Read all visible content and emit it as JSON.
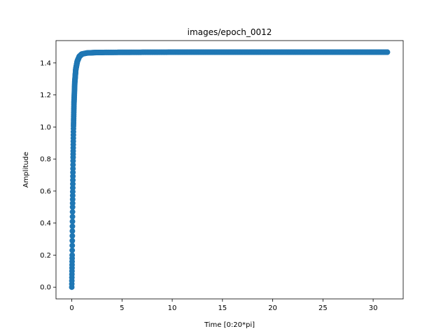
{
  "chart_data": {
    "type": "scatter",
    "title": "images/epoch_0012",
    "xlabel": "Time [0:20*pi]",
    "ylabel": "Amplitude",
    "xlim": [
      -1.57,
      32.99
    ],
    "ylim": [
      -0.0733,
      1.5393
    ],
    "x_ticks": [
      0,
      5,
      10,
      15,
      20,
      25,
      30
    ],
    "x_tick_labels": [
      "0",
      "5",
      "10",
      "15",
      "20",
      "25",
      "30"
    ],
    "y_ticks": [
      0.0,
      0.2,
      0.4,
      0.6,
      0.8,
      1.0,
      1.2,
      1.4
    ],
    "y_tick_labels": [
      "0.0",
      "0.2",
      "0.4",
      "0.6",
      "0.8",
      "1.0",
      "1.2",
      "1.4"
    ],
    "grid": false,
    "legend": "none",
    "series": [
      {
        "color": "#1f77b4",
        "x_range": [
          0,
          31.4159
        ],
        "approx_points": [
          [
            0.0,
            0.0
          ],
          [
            0.02,
            0.1
          ],
          [
            0.04,
            0.2
          ],
          [
            0.06,
            0.35
          ],
          [
            0.08,
            0.5
          ],
          [
            0.1,
            0.62
          ],
          [
            0.13,
            0.8
          ],
          [
            0.17,
            1.0
          ],
          [
            0.22,
            1.15
          ],
          [
            0.3,
            1.28
          ],
          [
            0.4,
            1.36
          ],
          [
            0.55,
            1.41
          ],
          [
            0.75,
            1.44
          ],
          [
            1.0,
            1.455
          ],
          [
            1.5,
            1.462
          ],
          [
            2.5,
            1.465
          ],
          [
            5,
            1.466
          ],
          [
            10,
            1.467
          ],
          [
            20,
            1.467
          ],
          [
            31.4159,
            1.467
          ]
        ]
      }
    ]
  }
}
